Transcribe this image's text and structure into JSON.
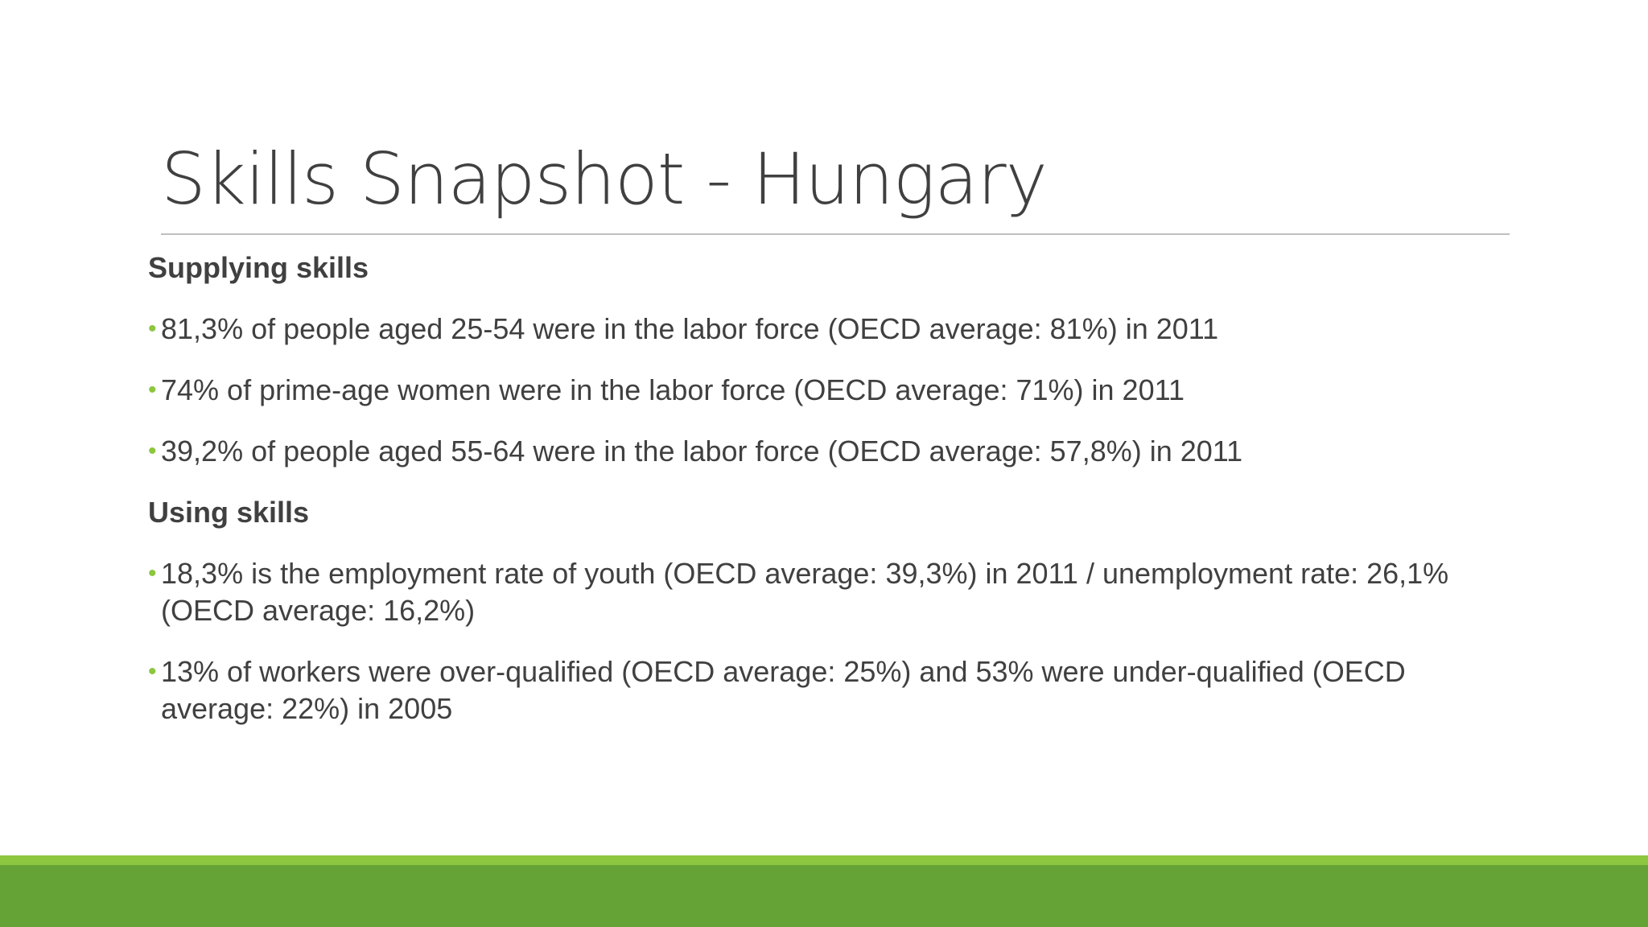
{
  "slide": {
    "title": "Skills Snapshot - Hungary",
    "sections": [
      {
        "heading": "Supplying skills",
        "bullets": [
          "81,3% of people aged 25-54 were in the labor force (OECD average: 81%) in 2011",
          "74% of prime-age women were in the labor force (OECD average: 71%) in 2011",
          "39,2% of people aged 55-64 were in the labor force (OECD average: 57,8%) in 2011"
        ]
      },
      {
        "heading": "Using skills",
        "bullets": [
          "18,3% is the employment rate of youth (OECD average: 39,3%) in 2011 / unemployment rate: 26,1% (OECD average: 16,2%)",
          "13% of workers were over-qualified (OECD average: 25%) and 53% were under-qualified (OECD average: 22%) in 2005"
        ]
      }
    ],
    "bullet_glyph": "•"
  },
  "colors": {
    "text": "#404040",
    "bullet": "#8dc63f",
    "footer_light": "#8dc63f",
    "footer_dark": "#65a336",
    "rule": "#bfbfbf"
  }
}
